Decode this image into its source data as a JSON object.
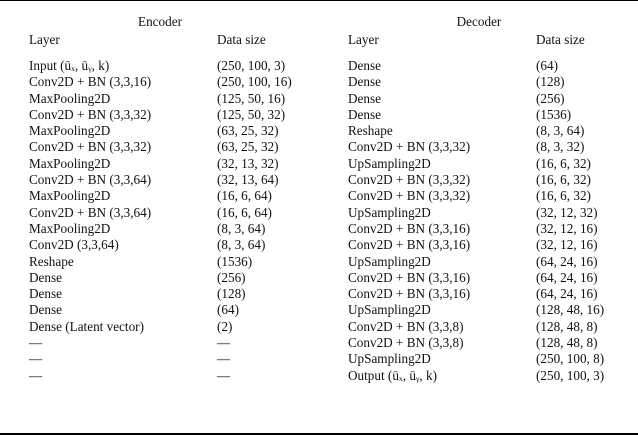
{
  "encoder": {
    "title": "Encoder",
    "headers": {
      "layer": "Layer",
      "data_size": "Data size"
    },
    "rows": [
      {
        "layer": "Input (ūₓ, ūᵧ, k)",
        "size": "(250, 100, 3)"
      },
      {
        "layer": "Conv2D + BN (3,3,16)",
        "size": "(250, 100, 16)"
      },
      {
        "layer": "MaxPooling2D",
        "size": "(125, 50, 16)"
      },
      {
        "layer": "Conv2D + BN (3,3,32)",
        "size": "(125, 50, 32)"
      },
      {
        "layer": "MaxPooling2D",
        "size": "(63, 25, 32)"
      },
      {
        "layer": "Conv2D + BN (3,3,32)",
        "size": "(63, 25, 32)"
      },
      {
        "layer": "MaxPooling2D",
        "size": "(32, 13, 32)"
      },
      {
        "layer": "Conv2D + BN (3,3,64)",
        "size": "(32, 13, 64)"
      },
      {
        "layer": "MaxPooling2D",
        "size": "(16, 6, 64)"
      },
      {
        "layer": "Conv2D + BN (3,3,64)",
        "size": "(16, 6, 64)"
      },
      {
        "layer": "MaxPooling2D",
        "size": "(8, 3, 64)"
      },
      {
        "layer": "Conv2D (3,3,64)",
        "size": "(8, 3, 64)"
      },
      {
        "layer": "Reshape",
        "size": "(1536)"
      },
      {
        "layer": "Dense",
        "size": "(256)"
      },
      {
        "layer": "Dense",
        "size": "(128)"
      },
      {
        "layer": "Dense",
        "size": "(64)"
      },
      {
        "layer": "Dense (Latent vector)",
        "size": "(2)"
      },
      {
        "layer": "—",
        "size": "—"
      },
      {
        "layer": "—",
        "size": "—"
      },
      {
        "layer": "—",
        "size": "—"
      }
    ]
  },
  "decoder": {
    "title": "Decoder",
    "headers": {
      "layer": "Layer",
      "data_size": "Data size"
    },
    "rows": [
      {
        "layer": "Dense",
        "size": "(64)"
      },
      {
        "layer": "Dense",
        "size": "(128)"
      },
      {
        "layer": "Dense",
        "size": "(256)"
      },
      {
        "layer": "Dense",
        "size": "(1536)"
      },
      {
        "layer": "Reshape",
        "size": "(8, 3, 64)"
      },
      {
        "layer": "Conv2D + BN (3,3,32)",
        "size": "(8, 3, 32)"
      },
      {
        "layer": "UpSampling2D",
        "size": "(16, 6, 32)"
      },
      {
        "layer": "Conv2D + BN (3,3,32)",
        "size": "(16, 6, 32)"
      },
      {
        "layer": "Conv2D + BN (3,3,32)",
        "size": "(16, 6, 32)"
      },
      {
        "layer": "UpSampling2D",
        "size": "(32, 12, 32)"
      },
      {
        "layer": "Conv2D + BN (3,3,16)",
        "size": "(32, 12, 16)"
      },
      {
        "layer": "Conv2D + BN (3,3,16)",
        "size": "(32, 12, 16)"
      },
      {
        "layer": "UpSampling2D",
        "size": "(64, 24, 16)"
      },
      {
        "layer": "Conv2D + BN (3,3,16)",
        "size": "(64, 24, 16)"
      },
      {
        "layer": "Conv2D + BN (3,3,16)",
        "size": "(64, 24, 16)"
      },
      {
        "layer": "UpSampling2D",
        "size": "(128, 48, 16)"
      },
      {
        "layer": "Conv2D + BN (3,3,8)",
        "size": "(128, 48, 8)"
      },
      {
        "layer": "Conv2D + BN (3,3,8)",
        "size": "(128, 48, 8)"
      },
      {
        "layer": "UpSampling2D",
        "size": "(250, 100, 8)"
      },
      {
        "layer": "Output (ūₓ, ūᵧ, k)",
        "size": "(250, 100, 3)"
      }
    ]
  }
}
